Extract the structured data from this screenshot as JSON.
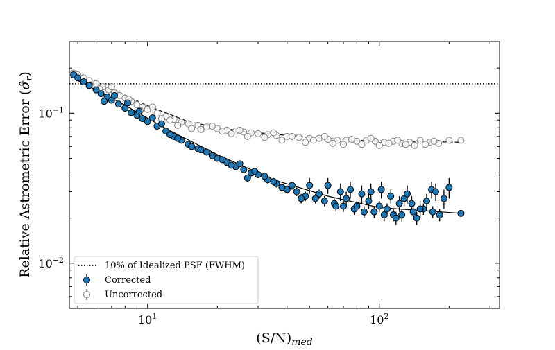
{
  "chart_data": {
    "type": "scatter",
    "title": "",
    "xlabel": "(S/N)",
    "xlabel_subscript": "med",
    "ylabel": "Relative Astrometric Error (",
    "ylabel_symbol": "σ̂",
    "ylabel_subscript": "r",
    "ylabel_end": ")",
    "xscale": "log",
    "yscale": "log",
    "xlim": [
      4.6,
      330
    ],
    "ylim": [
      0.005,
      0.3
    ],
    "x_ticks": [
      {
        "value": 10,
        "base": "10",
        "exp": "1"
      },
      {
        "value": 100,
        "base": "10",
        "exp": "2"
      }
    ],
    "y_ticks": [
      {
        "value": 0.01,
        "base": "10",
        "exp": "−2"
      },
      {
        "value": 0.1,
        "base": "10",
        "exp": "−1"
      }
    ],
    "legend_position": "lower-left",
    "reference_line": {
      "name": "10% of Idealized PSF (FWHM)",
      "y": 0.157,
      "style": "dotted",
      "color": "#000000"
    },
    "series": [
      {
        "name": "Corrected",
        "color": "#1f77b4",
        "edge": "#000000",
        "filled": true,
        "fit": [
          [
            5,
            0.165
          ],
          [
            8,
            0.113
          ],
          [
            12,
            0.079
          ],
          [
            20,
            0.053
          ],
          [
            35,
            0.036
          ],
          [
            60,
            0.028
          ],
          [
            100,
            0.0235
          ],
          [
            150,
            0.0225
          ],
          [
            225,
            0.0215
          ]
        ],
        "points": [
          [
            4.8,
            0.18,
            0.006
          ],
          [
            5.0,
            0.172,
            0.006
          ],
          [
            5.3,
            0.162,
            0.005
          ],
          [
            5.6,
            0.153,
            0.005
          ],
          [
            6.0,
            0.143,
            0.005
          ],
          [
            6.3,
            0.135,
            0.004
          ],
          [
            6.7,
            0.128,
            0.004
          ],
          [
            7.0,
            0.122,
            0.004
          ],
          [
            7.5,
            0.115,
            0.004
          ],
          [
            8.0,
            0.108,
            0.004
          ],
          [
            8.5,
            0.101,
            0.003
          ],
          [
            9.0,
            0.097,
            0.003
          ],
          [
            9.5,
            0.092,
            0.003
          ],
          [
            10.0,
            0.088,
            0.003
          ],
          [
            11.0,
            0.082,
            0.003
          ],
          [
            12.0,
            0.076,
            0.003
          ],
          [
            13.0,
            0.07,
            0.002
          ],
          [
            14.0,
            0.066,
            0.002
          ],
          [
            15.0,
            0.062,
            0.002
          ],
          [
            16.5,
            0.058,
            0.002
          ],
          [
            18.0,
            0.055,
            0.002
          ],
          [
            20.0,
            0.05,
            0.002
          ],
          [
            22.0,
            0.047,
            0.002
          ],
          [
            24.0,
            0.044,
            0.002
          ],
          [
            26.0,
            0.042,
            0.002
          ],
          [
            28.0,
            0.04,
            0.002
          ],
          [
            30.0,
            0.039,
            0.002
          ],
          [
            33.0,
            0.036,
            0.002
          ],
          [
            36.0,
            0.034,
            0.002
          ],
          [
            40.0,
            0.031,
            0.002
          ],
          [
            44.0,
            0.03,
            0.002
          ],
          [
            48.0,
            0.028,
            0.002
          ],
          [
            53.0,
            0.027,
            0.002
          ],
          [
            58.0,
            0.026,
            0.002
          ],
          [
            64.0,
            0.025,
            0.002
          ],
          [
            70.0,
            0.024,
            0.002
          ],
          [
            78.0,
            0.023,
            0.002
          ],
          [
            86.0,
            0.022,
            0.002
          ],
          [
            95.0,
            0.022,
            0.002
          ],
          [
            105.0,
            0.021,
            0.002
          ],
          [
            115.0,
            0.021,
            0.002
          ],
          [
            125.0,
            0.021,
            0.002
          ],
          [
            140.0,
            0.022,
            0.002
          ],
          [
            155.0,
            0.023,
            0.002
          ],
          [
            170.0,
            0.022,
            0.002
          ],
          [
            6.5,
            0.12,
            0.004
          ],
          [
            7.2,
            0.131,
            0.004
          ],
          [
            8.2,
            0.117,
            0.004
          ],
          [
            9.2,
            0.103,
            0.003
          ],
          [
            10.5,
            0.093,
            0.003
          ],
          [
            11.5,
            0.085,
            0.003
          ],
          [
            12.5,
            0.072,
            0.003
          ],
          [
            13.5,
            0.068,
            0.002
          ],
          [
            15.5,
            0.06,
            0.002
          ],
          [
            17.0,
            0.057,
            0.002
          ],
          [
            19.0,
            0.052,
            0.002
          ],
          [
            21.0,
            0.049,
            0.002
          ],
          [
            23.0,
            0.045,
            0.002
          ],
          [
            25.0,
            0.046,
            0.002
          ],
          [
            27.0,
            0.037,
            0.002
          ],
          [
            29.0,
            0.041,
            0.002
          ],
          [
            32.0,
            0.038,
            0.002
          ],
          [
            35.0,
            0.035,
            0.002
          ],
          [
            38.0,
            0.032,
            0.002
          ],
          [
            42.0,
            0.033,
            0.002
          ],
          [
            46.0,
            0.027,
            0.002
          ],
          [
            50.0,
            0.033,
            0.004
          ],
          [
            55.0,
            0.029,
            0.002
          ],
          [
            60.0,
            0.033,
            0.004
          ],
          [
            65.0,
            0.024,
            0.002
          ],
          [
            68.0,
            0.03,
            0.004
          ],
          [
            72.0,
            0.027,
            0.003
          ],
          [
            75.0,
            0.031,
            0.004
          ],
          [
            80.0,
            0.024,
            0.002
          ],
          [
            84.0,
            0.029,
            0.004
          ],
          [
            90.0,
            0.026,
            0.003
          ],
          [
            92.0,
            0.03,
            0.004
          ],
          [
            100.0,
            0.024,
            0.002
          ],
          [
            102.0,
            0.031,
            0.004
          ],
          [
            108.0,
            0.023,
            0.002
          ],
          [
            112.0,
            0.028,
            0.003
          ],
          [
            118.0,
            0.02,
            0.002
          ],
          [
            122.0,
            0.025,
            0.003
          ],
          [
            128.0,
            0.027,
            0.003
          ],
          [
            132.0,
            0.029,
            0.004
          ],
          [
            138.0,
            0.025,
            0.003
          ],
          [
            145.0,
            0.02,
            0.002
          ],
          [
            150.0,
            0.023,
            0.003
          ],
          [
            160.0,
            0.026,
            0.003
          ],
          [
            168.0,
            0.031,
            0.004
          ],
          [
            175.0,
            0.03,
            0.004
          ],
          [
            182.0,
            0.021,
            0.002
          ],
          [
            190.0,
            0.027,
            0.004
          ],
          [
            200.0,
            0.032,
            0.005
          ],
          [
            225.0,
            0.0215,
            0.001
          ]
        ]
      },
      {
        "name": "Uncorrected",
        "color": "#ffffff",
        "edge": "#808080",
        "filled": false,
        "fit": [
          [
            5,
            0.175
          ],
          [
            7,
            0.145
          ],
          [
            10,
            0.112
          ],
          [
            15,
            0.088
          ],
          [
            20,
            0.08
          ],
          [
            30,
            0.074
          ],
          [
            50,
            0.069
          ],
          [
            80,
            0.066
          ],
          [
            120,
            0.065
          ],
          [
            225,
            0.064
          ]
        ],
        "points": [
          [
            4.8,
            0.185,
            0.006
          ],
          [
            5.0,
            0.18,
            0.006
          ],
          [
            5.3,
            0.172,
            0.006
          ],
          [
            5.6,
            0.165,
            0.005
          ],
          [
            6.0,
            0.157,
            0.005
          ],
          [
            6.4,
            0.15,
            0.005
          ],
          [
            6.8,
            0.143,
            0.005
          ],
          [
            7.2,
            0.137,
            0.004
          ],
          [
            7.6,
            0.131,
            0.004
          ],
          [
            8.0,
            0.126,
            0.004
          ],
          [
            8.5,
            0.12,
            0.004
          ],
          [
            9.0,
            0.114,
            0.004
          ],
          [
            9.5,
            0.11,
            0.004
          ],
          [
            10.0,
            0.106,
            0.003
          ],
          [
            11.0,
            0.1,
            0.003
          ],
          [
            12.0,
            0.095,
            0.003
          ],
          [
            13.0,
            0.091,
            0.003
          ],
          [
            14.0,
            0.087,
            0.003
          ],
          [
            15.0,
            0.085,
            0.003
          ],
          [
            16.5,
            0.083,
            0.003
          ],
          [
            18.0,
            0.081,
            0.003
          ],
          [
            20.0,
            0.079,
            0.003
          ],
          [
            22.0,
            0.077,
            0.003
          ],
          [
            24.0,
            0.076,
            0.003
          ],
          [
            26.0,
            0.075,
            0.003
          ],
          [
            28.0,
            0.074,
            0.003
          ],
          [
            30.0,
            0.073,
            0.003
          ],
          [
            33.0,
            0.072,
            0.003
          ],
          [
            36.0,
            0.071,
            0.003
          ],
          [
            40.0,
            0.07,
            0.003
          ],
          [
            45.0,
            0.069,
            0.003
          ],
          [
            50.0,
            0.068,
            0.003
          ],
          [
            55.0,
            0.068,
            0.003
          ],
          [
            60.0,
            0.067,
            0.003
          ],
          [
            66.0,
            0.066,
            0.003
          ],
          [
            72.0,
            0.066,
            0.003
          ],
          [
            80.0,
            0.065,
            0.003
          ],
          [
            88.0,
            0.066,
            0.003
          ],
          [
            96.0,
            0.065,
            0.003
          ],
          [
            105.0,
            0.064,
            0.003
          ],
          [
            115.0,
            0.065,
            0.003
          ],
          [
            125.0,
            0.063,
            0.003
          ],
          [
            135.0,
            0.064,
            0.003
          ],
          [
            150.0,
            0.066,
            0.003
          ],
          [
            165.0,
            0.064,
            0.003
          ],
          [
            180.0,
            0.063,
            0.003
          ],
          [
            200.0,
            0.066,
            0.003
          ],
          [
            225.0,
            0.066,
            0.003
          ],
          [
            6.2,
            0.145,
            0.005
          ],
          [
            7.0,
            0.15,
            0.005
          ],
          [
            8.3,
            0.124,
            0.004
          ],
          [
            9.3,
            0.104,
            0.004
          ],
          [
            10.5,
            0.11,
            0.004
          ],
          [
            11.5,
            0.092,
            0.003
          ],
          [
            12.5,
            0.09,
            0.003
          ],
          [
            13.5,
            0.083,
            0.003
          ],
          [
            15.5,
            0.079,
            0.003
          ],
          [
            17.0,
            0.078,
            0.003
          ],
          [
            19.0,
            0.082,
            0.003
          ],
          [
            21.0,
            0.076,
            0.003
          ],
          [
            23.0,
            0.073,
            0.003
          ],
          [
            25.0,
            0.077,
            0.003
          ],
          [
            27.0,
            0.07,
            0.003
          ],
          [
            32.0,
            0.069,
            0.003
          ],
          [
            35.0,
            0.074,
            0.003
          ],
          [
            38.0,
            0.066,
            0.003
          ],
          [
            42.0,
            0.07,
            0.003
          ],
          [
            48.0,
            0.064,
            0.003
          ],
          [
            52.0,
            0.066,
            0.003
          ],
          [
            58.0,
            0.07,
            0.003
          ],
          [
            63.0,
            0.063,
            0.003
          ],
          [
            70.0,
            0.062,
            0.003
          ],
          [
            76.0,
            0.067,
            0.003
          ],
          [
            84.0,
            0.062,
            0.003
          ],
          [
            92.0,
            0.068,
            0.003
          ],
          [
            100.0,
            0.061,
            0.003
          ],
          [
            110.0,
            0.063,
            0.003
          ],
          [
            120.0,
            0.066,
            0.003
          ],
          [
            130.0,
            0.062,
            0.003
          ],
          [
            142.0,
            0.061,
            0.003
          ],
          [
            158.0,
            0.062,
            0.003
          ],
          [
            172.0,
            0.065,
            0.003
          ]
        ]
      }
    ]
  }
}
